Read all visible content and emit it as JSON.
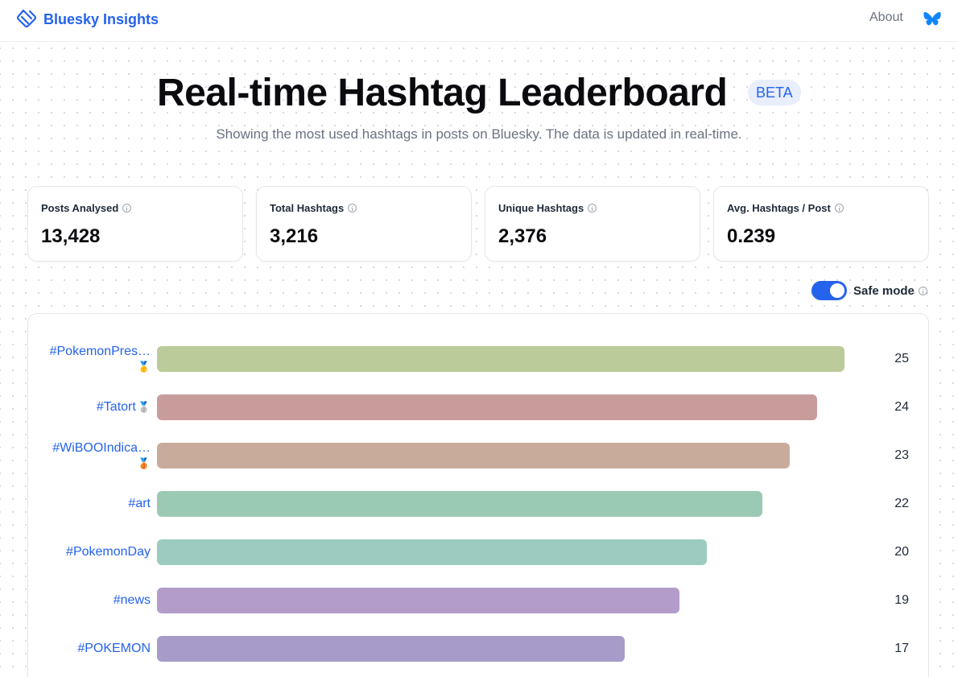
{
  "nav": {
    "brand": "Bluesky Insights",
    "about_label": "About",
    "logo_icon": "bluesky-insights-logo-icon",
    "butterfly_icon": "bluesky-butterfly-icon",
    "brand_color": "#2563eb"
  },
  "hero": {
    "title": "Real-time Hashtag Leaderboard",
    "badge": "BETA",
    "subtitle": "Showing the most used hashtags in posts on Bluesky. The data is updated in real-time."
  },
  "stats": [
    {
      "label": "Posts Analysed",
      "value": "13,428"
    },
    {
      "label": "Total Hashtags",
      "value": "3,216"
    },
    {
      "label": "Unique Hashtags",
      "value": "2,376"
    },
    {
      "label": "Avg. Hashtags / Post",
      "value": "0.239"
    }
  ],
  "safe_mode": {
    "label": "Safe mode",
    "enabled": true
  },
  "leaderboard": {
    "max_count": 25,
    "rows": [
      {
        "tag": "#PokemonPres…",
        "medal": "🥇",
        "count": 25,
        "color": "#bbcb9a"
      },
      {
        "tag": "#Tatort",
        "medal": "🥈",
        "count": 24,
        "color": "#c99c9c"
      },
      {
        "tag": "#WiBOOIndica…",
        "medal": "🥉",
        "count": 23,
        "color": "#c9ab9c"
      },
      {
        "tag": "#art",
        "medal": "",
        "count": 22,
        "color": "#9bcab4"
      },
      {
        "tag": "#PokemonDay",
        "medal": "",
        "count": 20,
        "color": "#9ccbc0"
      },
      {
        "tag": "#news",
        "medal": "",
        "count": 19,
        "color": "#b39cca"
      },
      {
        "tag": "#POKEMON",
        "medal": "",
        "count": 17,
        "color": "#a79cc9"
      }
    ]
  }
}
